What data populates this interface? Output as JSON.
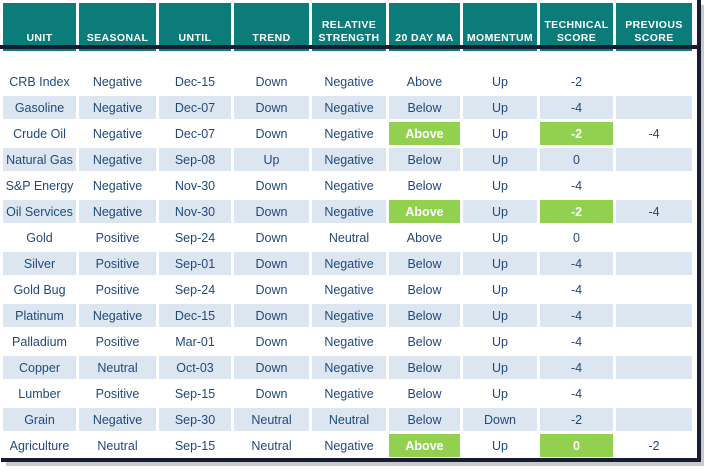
{
  "colors": {
    "header_background": "#0b7c79",
    "header_text": "#ffffff",
    "row_stripe": "#dce6f1",
    "row_plain": "#ffffff",
    "body_text": "#1f497d",
    "highlight_green": "#92d050",
    "frame_navy": "#171c33",
    "shadow_gray": "#c9c9c9"
  },
  "chart_data": {
    "type": "table",
    "columns": [
      "UNIT",
      "SEASONAL",
      "UNTIL",
      "TREND",
      "RELATIVE STRENGTH",
      "20 DAY MA",
      "MOMENTUM",
      "TECHNICAL SCORE",
      "PREVIOUS SCORE"
    ],
    "rows": [
      {
        "unit": "CRB Index",
        "seasonal": "Negative",
        "until": "Dec-15",
        "trend": "Down",
        "relative_strength": "Negative",
        "ma20": "Above",
        "ma20_highlight": false,
        "momentum": "Up",
        "technical_score": "-2",
        "technical_highlight": false,
        "previous_score": ""
      },
      {
        "unit": "Gasoline",
        "seasonal": "Negative",
        "until": "Dec-07",
        "trend": "Down",
        "relative_strength": "Negative",
        "ma20": "Below",
        "ma20_highlight": false,
        "momentum": "Up",
        "technical_score": "-4",
        "technical_highlight": false,
        "previous_score": ""
      },
      {
        "unit": "Crude Oil",
        "seasonal": "Negative",
        "until": "Dec-07",
        "trend": "Down",
        "relative_strength": "Negative",
        "ma20": "Above",
        "ma20_highlight": true,
        "momentum": "Up",
        "technical_score": "-2",
        "technical_highlight": true,
        "previous_score": "-4"
      },
      {
        "unit": "Natural Gas",
        "seasonal": "Negative",
        "until": "Sep-08",
        "trend": "Up",
        "relative_strength": "Negative",
        "ma20": "Below",
        "ma20_highlight": false,
        "momentum": "Up",
        "technical_score": "0",
        "technical_highlight": false,
        "previous_score": ""
      },
      {
        "unit": "S&P Energy",
        "seasonal": "Negative",
        "until": "Nov-30",
        "trend": "Down",
        "relative_strength": "Negative",
        "ma20": "Below",
        "ma20_highlight": false,
        "momentum": "Up",
        "technical_score": "-4",
        "technical_highlight": false,
        "previous_score": ""
      },
      {
        "unit": "Oil Services",
        "seasonal": "Negative",
        "until": "Nov-30",
        "trend": "Down",
        "relative_strength": "Negative",
        "ma20": "Above",
        "ma20_highlight": true,
        "momentum": "Up",
        "technical_score": "-2",
        "technical_highlight": true,
        "previous_score": "-4"
      },
      {
        "unit": "Gold",
        "seasonal": "Positive",
        "until": "Sep-24",
        "trend": "Down",
        "relative_strength": "Neutral",
        "ma20": "Above",
        "ma20_highlight": false,
        "momentum": "Up",
        "technical_score": "0",
        "technical_highlight": false,
        "previous_score": ""
      },
      {
        "unit": "Silver",
        "seasonal": "Positive",
        "until": "Sep-01",
        "trend": "Down",
        "relative_strength": "Negative",
        "ma20": "Below",
        "ma20_highlight": false,
        "momentum": "Up",
        "technical_score": "-4",
        "technical_highlight": false,
        "previous_score": ""
      },
      {
        "unit": "Gold Bug",
        "seasonal": "Positive",
        "until": "Sep-24",
        "trend": "Down",
        "relative_strength": "Negative",
        "ma20": "Below",
        "ma20_highlight": false,
        "momentum": "Up",
        "technical_score": "-4",
        "technical_highlight": false,
        "previous_score": ""
      },
      {
        "unit": "Platinum",
        "seasonal": "Negative",
        "until": "Dec-15",
        "trend": "Down",
        "relative_strength": "Negative",
        "ma20": "Below",
        "ma20_highlight": false,
        "momentum": "Up",
        "technical_score": "-4",
        "technical_highlight": false,
        "previous_score": ""
      },
      {
        "unit": "Palladium",
        "seasonal": "Positive",
        "until": "Mar-01",
        "trend": "Down",
        "relative_strength": "Negative",
        "ma20": "Below",
        "ma20_highlight": false,
        "momentum": "Up",
        "technical_score": "-4",
        "technical_highlight": false,
        "previous_score": ""
      },
      {
        "unit": "Copper",
        "seasonal": "Neutral",
        "until": "Oct-03",
        "trend": "Down",
        "relative_strength": "Negative",
        "ma20": "Below",
        "ma20_highlight": false,
        "momentum": "Up",
        "technical_score": "-4",
        "technical_highlight": false,
        "previous_score": ""
      },
      {
        "unit": "Lumber",
        "seasonal": "Positive",
        "until": "Sep-15",
        "trend": "Down",
        "relative_strength": "Negative",
        "ma20": "Below",
        "ma20_highlight": false,
        "momentum": "Up",
        "technical_score": "-4",
        "technical_highlight": false,
        "previous_score": ""
      },
      {
        "unit": "Grain",
        "seasonal": "Negative",
        "until": "Sep-30",
        "trend": "Neutral",
        "relative_strength": "Neutral",
        "ma20": "Below",
        "ma20_highlight": false,
        "momentum": "Down",
        "technical_score": "-2",
        "technical_highlight": false,
        "previous_score": ""
      },
      {
        "unit": "Agriculture",
        "seasonal": "Neutral",
        "until": "Sep-15",
        "trend": "Neutral",
        "relative_strength": "Negative",
        "ma20": "Above",
        "ma20_highlight": true,
        "momentum": "Up",
        "technical_score": "0",
        "technical_highlight": true,
        "previous_score": "-2"
      }
    ]
  }
}
